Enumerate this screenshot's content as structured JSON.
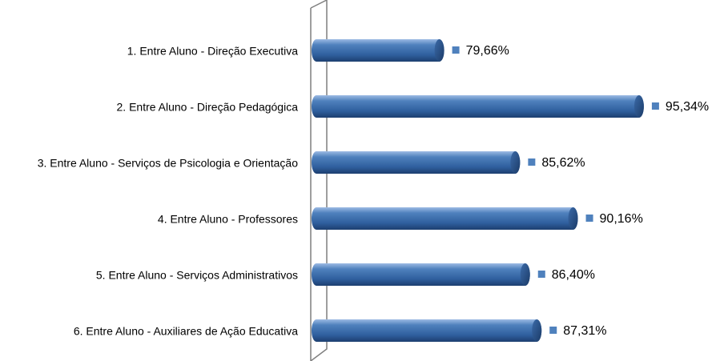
{
  "chart_data": {
    "type": "bar",
    "orientation": "horizontal",
    "categories": [
      "1. Entre Aluno - Direção Executiva",
      "2. Entre Aluno - Direção Pedagógica",
      "3. Entre Aluno - Serviços de Psicologia e Orientação",
      "4. Entre Aluno - Professores",
      "5. Entre Aluno - Serviços Administrativos",
      "6. Entre Aluno - Auxiliares de Ação Educativa"
    ],
    "values": [
      79.66,
      95.34,
      85.62,
      90.16,
      86.4,
      87.31
    ],
    "value_labels": [
      "79,66%",
      "95,34%",
      "85,62%",
      "90,16%",
      "86,40%",
      "87,31%"
    ],
    "color": "#4f81bd",
    "xlim": [
      70,
      100
    ]
  }
}
